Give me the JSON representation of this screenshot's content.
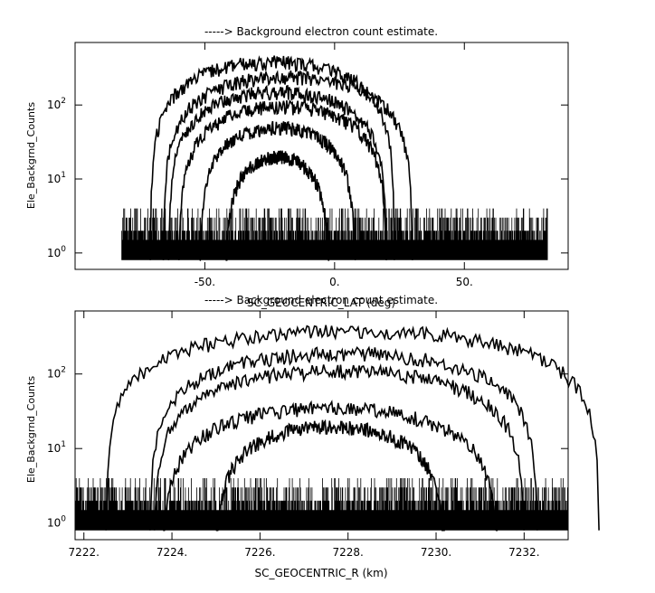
{
  "chart_data": [
    {
      "type": "line",
      "title": "-----> Background electron count estimate.",
      "xlabel": "SC_GEOCENTRIC_LAT (deg)",
      "ylabel": "Ele_Backgrnd_Counts",
      "yscale": "log",
      "xlim": [
        -100,
        90
      ],
      "ylim": [
        0.6,
        700
      ],
      "x_ticks": [
        -50,
        0,
        50
      ],
      "x_tick_labels": [
        "-50.",
        "0.",
        "50."
      ],
      "y_ticks": [
        1,
        10,
        100
      ],
      "y_tick_labels": [
        "10^0",
        "10^1",
        "10^2"
      ],
      "grid": false,
      "data_x_range": [
        -82,
        82
      ],
      "series": [
        {
          "peak_x": -24,
          "peak_y": 380,
          "half_width": 47
        },
        {
          "peak_x": -18,
          "peak_y": 240,
          "half_width": 48
        },
        {
          "peak_x": -22,
          "peak_y": 150,
          "half_width": 42
        },
        {
          "peak_x": -20,
          "peak_y": 95,
          "half_width": 40
        },
        {
          "peak_x": -22,
          "peak_y": 50,
          "half_width": 30
        },
        {
          "peak_x": -22,
          "peak_y": 20,
          "half_width": 20
        }
      ],
      "noise_floor": {
        "base": 1,
        "max": 4
      }
    },
    {
      "type": "line",
      "title": "-----> Background electron count estimate.",
      "xlabel": "SC_GEOCENTRIC_R (km)",
      "ylabel": "Ele_Backgrnd_Counts",
      "yscale": "log",
      "xlim": [
        7221.8,
        7233.0
      ],
      "ylim": [
        0.6,
        700
      ],
      "x_ticks": [
        7222,
        7224,
        7226,
        7228,
        7230,
        7232
      ],
      "x_tick_labels": [
        "7222.",
        "7224.",
        "7226.",
        "7228.",
        "7230.",
        "7232."
      ],
      "y_ticks": [
        1,
        10,
        100
      ],
      "y_tick_labels": [
        "10^0",
        "10^1",
        "10^2"
      ],
      "grid": false,
      "data_x_range": [
        7221.8,
        7233.0
      ],
      "series": [
        {
          "peak_x": 7228.1,
          "peak_y": 380,
          "half_width": 5.6
        },
        {
          "peak_x": 7227.9,
          "peak_y": 190,
          "half_width": 4.4
        },
        {
          "peak_x": 7227.8,
          "peak_y": 110,
          "half_width": 4.2
        },
        {
          "peak_x": 7227.6,
          "peak_y": 35,
          "half_width": 3.8
        },
        {
          "peak_x": 7227.6,
          "peak_y": 20,
          "half_width": 2.6
        }
      ],
      "noise_floor": {
        "base": 1,
        "max": 4
      }
    }
  ]
}
